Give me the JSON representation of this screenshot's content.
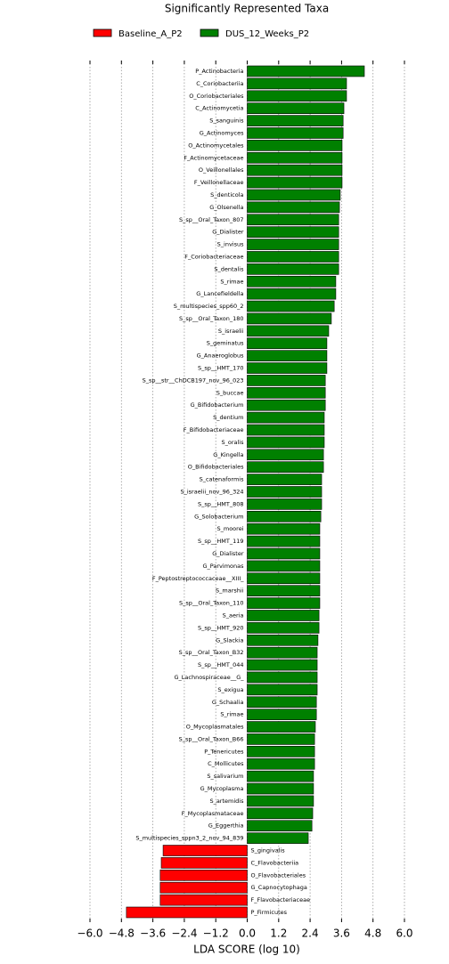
{
  "chart_data": {
    "type": "bar",
    "orientation": "horizontal",
    "title": "Significantly Represented Taxa",
    "x_label": "LDA SCORE (log 10)",
    "categories": [
      "P_Actinobacteria",
      "C_Coriobacteriia",
      "O_Coriobacteriales",
      "C_Actinomycetia",
      "S_sanguinis",
      "G_Actinomyces",
      "O_Actinomycetales",
      "F_Actinomycetaceae",
      "O_Veillonellales",
      "F_Veillonellaceae",
      "S_denticola",
      "G_Olsenella",
      "S_sp__Oral_Taxon_807",
      "G_Dialister",
      "S_invisus",
      "F_Coriobacteriaceae",
      "S_dentalis",
      "S_rimae",
      "G_Lancefieldella",
      "S_multispecies_spp60_2",
      "S_sp__Oral_Taxon_180",
      "S_israelii",
      "S_geminatus",
      "G_Anaeroglobus",
      "S_sp__HMT_170",
      "S_sp__str__ChDCB197_nov_96_023",
      "S_buccae",
      "G_Bifidobacterium",
      "S_dentium",
      "F_Bifidobacteriaceae",
      "S_oralis",
      "G_Kingella",
      "O_Bifidobacteriales",
      "S_catenaformis",
      "S_israelii_nov_96_324",
      "S_sp__HMT_808",
      "G_Solobacterium",
      "S_moorei",
      "S_sp__HMT_119",
      "G_Dialister",
      "G_Parvimonas",
      "F_Peptostreptococcaceae__XIII_",
      "S_marshii",
      "S_sp__Oral_Taxon_110",
      "S_aeria",
      "S_sp__HMT_920",
      "G_Slackia",
      "S_sp__Oral_Taxon_B32",
      "S_sp__HMT_044",
      "G_Lachnospiraceae__G_",
      "S_exigua",
      "G_Schaalia",
      "S_rimae",
      "O_Mycoplasmatales",
      "S_sp__Oral_Taxon_B66",
      "P_Tenericutes",
      "C_Mollicutes",
      "S_salivarium",
      "G_Mycoplasma",
      "S_artemidis",
      "F_Mycoplasmataceae",
      "G_Eggerthia",
      "S_multispecies_sppn3_2_nov_94_839",
      "S_gingivalis",
      "C_Flavobacteriia",
      "O_Flavobacteriales",
      "G_Capnocytophaga",
      "F_Flavobacteriaceae",
      "P_Firmicutes"
    ],
    "series": [
      {
        "name": "Baseline_A_P2",
        "color": "#ff0000",
        "values": [
          null,
          null,
          null,
          null,
          null,
          null,
          null,
          null,
          null,
          null,
          null,
          null,
          null,
          null,
          null,
          null,
          null,
          null,
          null,
          null,
          null,
          null,
          null,
          null,
          null,
          null,
          null,
          null,
          null,
          null,
          null,
          null,
          null,
          null,
          null,
          null,
          null,
          null,
          null,
          null,
          null,
          null,
          null,
          null,
          null,
          null,
          null,
          null,
          null,
          null,
          null,
          null,
          null,
          null,
          null,
          null,
          null,
          null,
          null,
          null,
          null,
          null,
          null,
          -3.21,
          -3.28,
          -3.32,
          -3.32,
          -3.32,
          -4.61
        ]
      },
      {
        "name": "DUS_12_Weeks_P2",
        "color": "#008000",
        "values": [
          4.47,
          3.79,
          3.79,
          3.69,
          3.66,
          3.66,
          3.62,
          3.62,
          3.62,
          3.62,
          3.55,
          3.52,
          3.49,
          3.49,
          3.49,
          3.49,
          3.49,
          3.38,
          3.38,
          3.32,
          3.21,
          3.11,
          3.04,
          3.04,
          3.04,
          2.98,
          2.98,
          2.98,
          2.94,
          2.94,
          2.94,
          2.91,
          2.91,
          2.84,
          2.84,
          2.84,
          2.81,
          2.77,
          2.77,
          2.77,
          2.77,
          2.77,
          2.77,
          2.77,
          2.74,
          2.74,
          2.7,
          2.67,
          2.67,
          2.67,
          2.67,
          2.64,
          2.64,
          2.6,
          2.57,
          2.57,
          2.57,
          2.53,
          2.53,
          2.53,
          2.5,
          2.47,
          2.33,
          null,
          null,
          null,
          null,
          null,
          null
        ]
      }
    ],
    "xlim": [
      -6.0,
      6.0
    ],
    "xticks": [
      {
        "value": -6.0,
        "label": "−6.0"
      },
      {
        "value": -4.8,
        "label": "−4.8"
      },
      {
        "value": -3.6,
        "label": "−3.6"
      },
      {
        "value": -2.4,
        "label": "−2.4"
      },
      {
        "value": -1.2,
        "label": "−1.2"
      },
      {
        "value": 0.0,
        "label": "0.0"
      },
      1.2,
      2.4,
      3.6,
      4.8,
      {
        "value": 6.0,
        "label": "6.0"
      }
    ],
    "grid": true,
    "legend": "top"
  }
}
